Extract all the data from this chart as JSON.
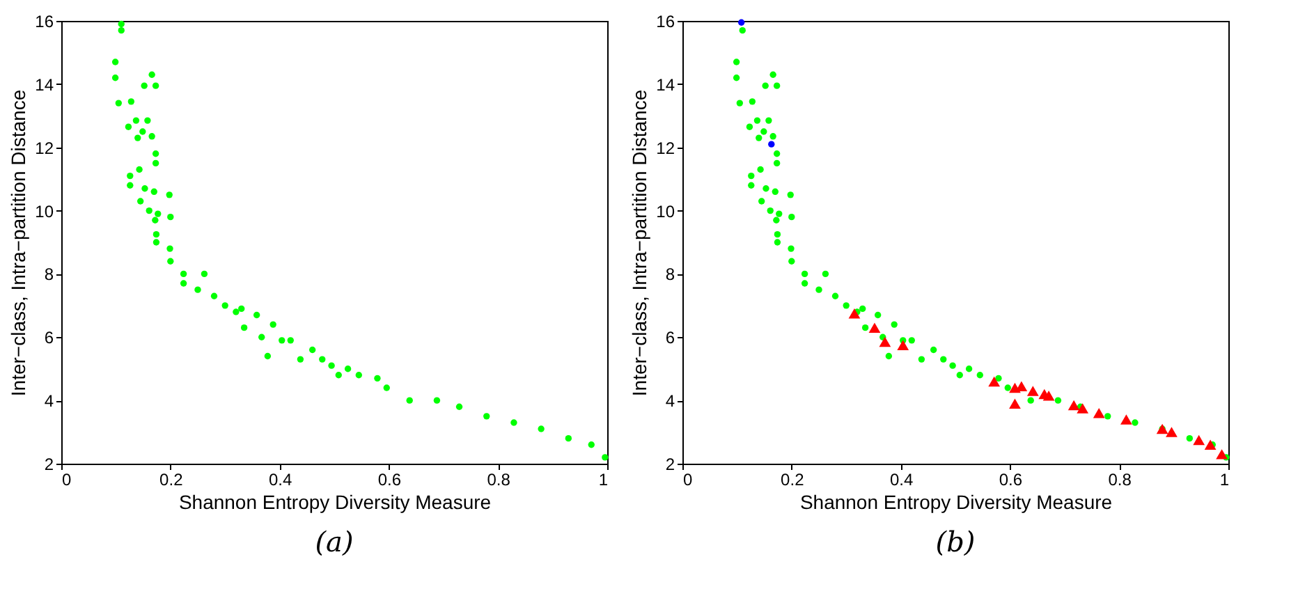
{
  "chart_data": [
    {
      "type": "scatter",
      "xlabel": "Shannon Entropy Diversity Measure",
      "ylabel": "Inter−class, Intra−partition Distance",
      "annotations": [
        "(a)"
      ],
      "xlim": [
        0,
        1
      ],
      "ylim": [
        2,
        16
      ],
      "xticks": [
        0,
        0.2,
        0.4,
        0.6,
        0.8,
        1
      ],
      "yticks": [
        2,
        4,
        6,
        8,
        10,
        12,
        14,
        16
      ],
      "grid": false,
      "marker": "circle",
      "series": [
        {
          "color": "#00ff00",
          "x": [
            0.11,
            0.11,
            0.099,
            0.099,
            0.166,
            0.152,
            0.173,
            0.105,
            0.128,
            0.137,
            0.158,
            0.123,
            0.149,
            0.14,
            0.166,
            0.173,
            0.173,
            0.126,
            0.126,
            0.143,
            0.153,
            0.145,
            0.161,
            0.17,
            0.198,
            0.2,
            0.177,
            0.172,
            0.174,
            0.174,
            0.199,
            0.2,
            0.224,
            0.224,
            0.262,
            0.25,
            0.28,
            0.3,
            0.32,
            0.33,
            0.335,
            0.358,
            0.367,
            0.388,
            0.378,
            0.404,
            0.42,
            0.438,
            0.46,
            0.478,
            0.495,
            0.508,
            0.525,
            0.545,
            0.579,
            0.596,
            0.638,
            0.688,
            0.729,
            0.779,
            0.829,
            0.879,
            0.929,
            0.971,
            0.996
          ],
          "values": [
            15.9,
            15.7,
            14.7,
            14.2,
            14.3,
            13.95,
            13.95,
            13.4,
            13.45,
            12.85,
            12.85,
            12.65,
            12.5,
            12.3,
            12.35,
            11.8,
            11.5,
            11.1,
            10.8,
            11.3,
            10.7,
            10.3,
            10.0,
            10.6,
            10.5,
            9.8,
            9.9,
            9.7,
            9.25,
            9.0,
            8.8,
            8.4,
            8.0,
            7.7,
            8.0,
            7.5,
            7.3,
            7.0,
            6.8,
            6.9,
            6.3,
            6.7,
            6.0,
            6.4,
            5.4,
            5.9,
            5.9,
            5.3,
            5.6,
            5.3,
            5.1,
            4.8,
            5.0,
            4.8,
            4.7,
            4.4,
            4.0,
            4.0,
            3.8,
            3.5,
            3.3,
            3.1,
            2.8,
            2.6,
            2.2
          ]
        }
      ]
    },
    {
      "type": "scatter",
      "xlabel": "Shannon Entropy Diversity Measure",
      "ylabel": "Inter−class, Intra−partition Distance",
      "annotations": [
        "(b)"
      ],
      "xlim": [
        0,
        1
      ],
      "ylim": [
        2,
        16
      ],
      "xticks": [
        0,
        0.2,
        0.4,
        0.6,
        0.8,
        1
      ],
      "yticks": [
        2,
        4,
        6,
        8,
        10,
        12,
        14,
        16
      ],
      "grid": false,
      "marker": "circle",
      "series": [
        {
          "color": "#00ff00",
          "x": [
            0.11,
            0.099,
            0.099,
            0.166,
            0.152,
            0.173,
            0.105,
            0.128,
            0.137,
            0.158,
            0.123,
            0.149,
            0.14,
            0.166,
            0.173,
            0.173,
            0.126,
            0.126,
            0.143,
            0.153,
            0.145,
            0.161,
            0.17,
            0.198,
            0.2,
            0.177,
            0.172,
            0.174,
            0.174,
            0.199,
            0.2,
            0.224,
            0.224,
            0.262,
            0.25,
            0.28,
            0.3,
            0.32,
            0.33,
            0.335,
            0.358,
            0.367,
            0.388,
            0.378,
            0.404,
            0.42,
            0.438,
            0.46,
            0.478,
            0.495,
            0.508,
            0.525,
            0.545,
            0.579,
            0.596,
            0.638,
            0.688,
            0.729,
            0.779,
            0.829,
            0.879,
            0.929,
            0.971,
            0.996
          ],
          "values": [
            15.7,
            14.7,
            14.2,
            14.3,
            13.95,
            13.95,
            13.4,
            13.45,
            12.85,
            12.85,
            12.65,
            12.5,
            12.3,
            12.35,
            11.8,
            11.5,
            11.1,
            10.8,
            11.3,
            10.7,
            10.3,
            10.0,
            10.6,
            10.5,
            9.8,
            9.9,
            9.7,
            9.25,
            9.0,
            8.8,
            8.4,
            8.0,
            7.7,
            8.0,
            7.5,
            7.3,
            7.0,
            6.8,
            6.9,
            6.3,
            6.7,
            6.0,
            6.4,
            5.4,
            5.9,
            5.9,
            5.3,
            5.6,
            5.3,
            5.1,
            4.8,
            5.0,
            4.8,
            4.7,
            4.4,
            4.0,
            4.0,
            3.8,
            3.5,
            3.3,
            3.1,
            2.8,
            2.6,
            2.2
          ]
        },
        {
          "color": "#0000ff",
          "x": [
            0.108,
            0.163
          ],
          "values": [
            15.95,
            12.1
          ]
        },
        {
          "color": "#ff0000",
          "marker": "triangle",
          "x": [
            0.315,
            0.352,
            0.371,
            0.404,
            0.571,
            0.609,
            0.621,
            0.642,
            0.663,
            0.671,
            0.609,
            0.717,
            0.733,
            0.763,
            0.813,
            0.879,
            0.896,
            0.946,
            0.967,
            0.988
          ],
          "values": [
            6.75,
            6.3,
            5.85,
            5.75,
            4.6,
            4.4,
            4.45,
            4.3,
            4.2,
            4.15,
            3.9,
            3.85,
            3.75,
            3.6,
            3.4,
            3.1,
            3.0,
            2.75,
            2.6,
            2.3
          ]
        }
      ]
    }
  ]
}
